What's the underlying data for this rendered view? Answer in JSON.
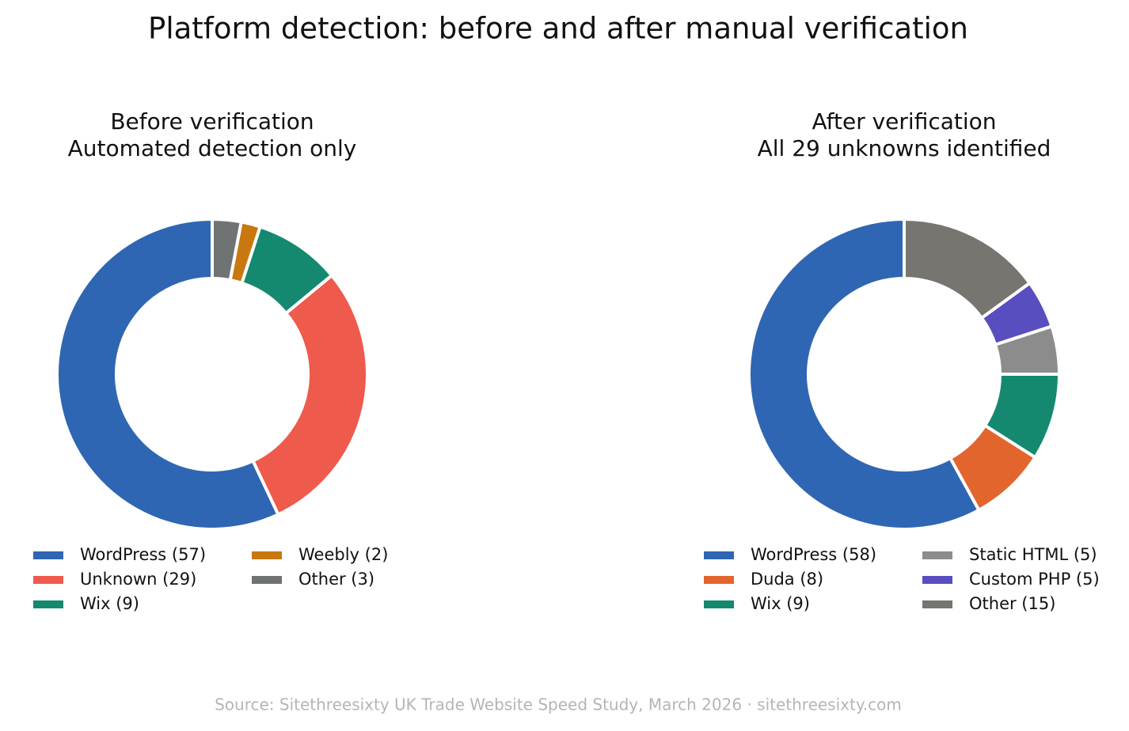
{
  "title": "Platform detection: before and after manual verification",
  "source": "Source: Sitethreesixty UK Trade Website Speed Study, March 2026 · sitethreesixty.com",
  "chart_data": [
    {
      "type": "donut",
      "title": "Before verification",
      "subtitle": "Automated detection only",
      "categories": [
        "WordPress (57)",
        "Unknown (29)",
        "Wix (9)",
        "Weebly (2)",
        "Other (3)"
      ],
      "values": [
        57,
        29,
        9,
        2,
        3
      ],
      "colors": [
        "#2f66b3",
        "#ee5a4c",
        "#14896f",
        "#c8780f",
        "#707373"
      ],
      "legend_columns": 2
    },
    {
      "type": "donut",
      "title": "After verification",
      "subtitle": "All 29 unknowns identified",
      "categories": [
        "WordPress (58)",
        "Duda (8)",
        "Wix (9)",
        "Static HTML (5)",
        "Custom PHP (5)",
        "Other (15)"
      ],
      "values": [
        58,
        8,
        9,
        5,
        5,
        15
      ],
      "colors": [
        "#2f66b3",
        "#e3652e",
        "#14896f",
        "#8c8c8c",
        "#584ec0",
        "#777570"
      ],
      "legend_columns": 2
    }
  ]
}
